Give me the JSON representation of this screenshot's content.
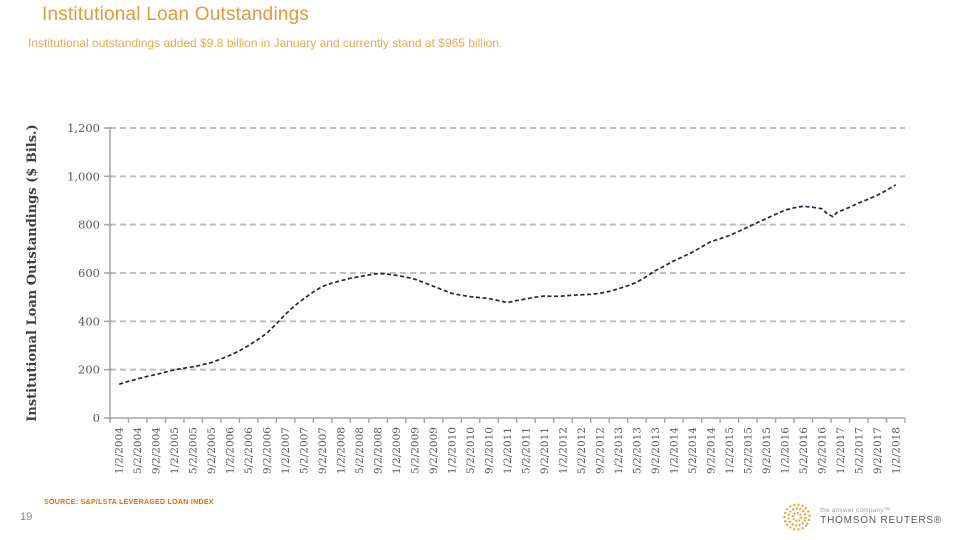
{
  "header": {
    "title": "Institutional Loan Outstandings",
    "subtitle": "Institutional outstandings added $9.8 billion in January and currently stand at $965 billion."
  },
  "chart_data": {
    "type": "line",
    "title": "",
    "xlabel": "",
    "ylabel": "Institutional Loan Outstandings ($ Bils.)",
    "ylim": [
      0,
      1200
    ],
    "ytick_step": 200,
    "ytick_labels": [
      "0",
      "200",
      "400",
      "600",
      "800",
      "1,000",
      "1,200"
    ],
    "grid": "horizontal-dashed",
    "legend": "none",
    "line_style": "dashed",
    "categories": [
      "1/2/2004",
      "5/2/2004",
      "9/2/2004",
      "1/2/2005",
      "5/2/2005",
      "9/2/2005",
      "1/2/2006",
      "5/2/2006",
      "9/2/2006",
      "1/2/2007",
      "5/2/2007",
      "9/2/2007",
      "1/2/2008",
      "5/2/2008",
      "9/2/2008",
      "1/2/2009",
      "5/2/2009",
      "9/2/2009",
      "1/2/2010",
      "5/2/2010",
      "9/2/2010",
      "1/2/2011",
      "5/2/2011",
      "9/2/2011",
      "1/2/2012",
      "5/2/2012",
      "9/2/2012",
      "1/2/2013",
      "5/2/2013",
      "9/2/2013",
      "1/2/2014",
      "5/2/2014",
      "9/2/2014",
      "1/2/2015",
      "5/2/2015",
      "9/2/2015",
      "1/2/2016",
      "5/2/2016",
      "9/2/2016",
      "1/2/2017",
      "5/2/2017",
      "9/2/2017",
      "1/2/2018"
    ],
    "series": [
      {
        "name": "Institutional Loan Outstandings ($ Bils.)",
        "x_tick_index": [
          0,
          0.5,
          1,
          1.5,
          2,
          2.5,
          3,
          3.5,
          4,
          4.5,
          5,
          5.5,
          6,
          6.5,
          7,
          7.5,
          8,
          8.5,
          9,
          9.5,
          10,
          10.5,
          11,
          11.5,
          12,
          12.5,
          13,
          13.5,
          14,
          14.5,
          15,
          15.5,
          16,
          16.5,
          17,
          17.5,
          18,
          18.5,
          19,
          19.5,
          20,
          20.5,
          21,
          21.5,
          22,
          22.5,
          23,
          23.5,
          24,
          24.5,
          25,
          25.5,
          26,
          26.5,
          27,
          27.5,
          28,
          28.5,
          29,
          29.5,
          30,
          30.5,
          31,
          31.5,
          32,
          32.5,
          33,
          33.5,
          34,
          34.5,
          35,
          35.5,
          36,
          36.5,
          37,
          37.5,
          38,
          38.3,
          38.6,
          38.8,
          39,
          39.5,
          40,
          40.5,
          41,
          41.5,
          42
        ],
        "values": [
          140,
          152,
          162,
          172,
          180,
          190,
          200,
          206,
          212,
          220,
          230,
          244,
          260,
          278,
          300,
          325,
          352,
          390,
          430,
          465,
          495,
          522,
          545,
          558,
          568,
          578,
          585,
          592,
          598,
          596,
          590,
          583,
          574,
          560,
          545,
          530,
          515,
          508,
          502,
          498,
          494,
          486,
          478,
          486,
          493,
          500,
          505,
          503,
          505,
          508,
          510,
          512,
          516,
          524,
          535,
          547,
          562,
          585,
          610,
          630,
          650,
          668,
          686,
          708,
          730,
          742,
          755,
          772,
          790,
          808,
          825,
          843,
          860,
          870,
          876,
          872,
          866,
          845,
          833,
          849,
          856,
          872,
          890,
          905,
          922,
          942,
          965
        ]
      }
    ]
  },
  "footer": {
    "source": "SOURCE: S&P/LSTA LEVERAGED LOAN INDEX",
    "page_number": "19",
    "logo": {
      "tagline": "the answer company™",
      "brand": "THOMSON REUTERS®"
    }
  },
  "colors": {
    "title": "#e29a3c",
    "subtitle": "#eaa94d",
    "line": "#1c2b39",
    "gridline": "#bfbfbf",
    "axis": "#a6a6a6",
    "tick_text": "#595959",
    "axis_title": "#3f3f3f",
    "source": "#e66a05",
    "logo_orange": "#f6921e"
  }
}
